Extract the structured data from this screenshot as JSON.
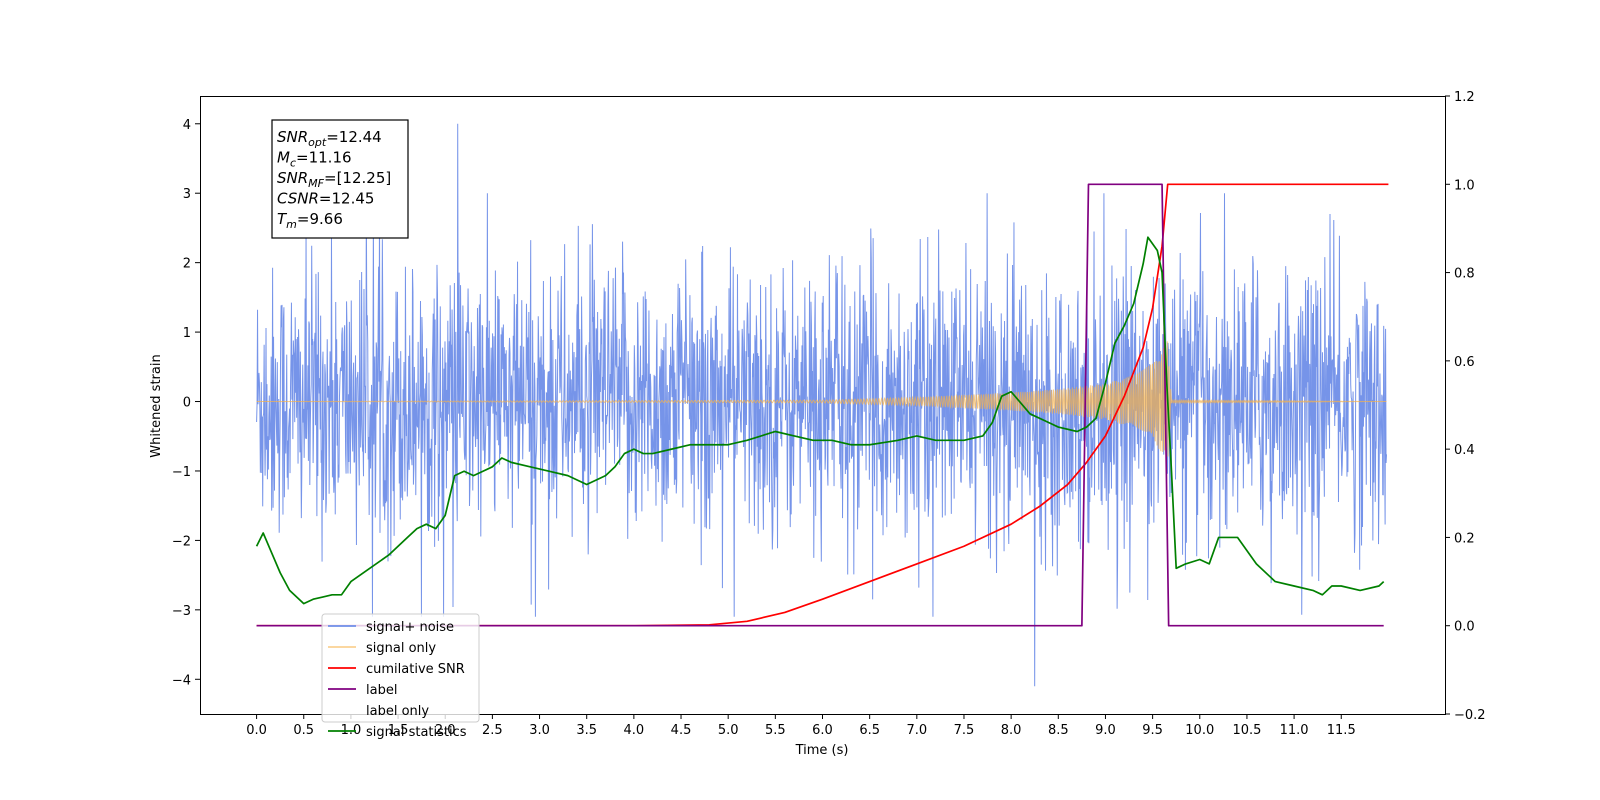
{
  "chart_data": {
    "type": "line",
    "title": "",
    "xlabel": "Time (s)",
    "ylabel": "Whitened strain",
    "xlim": [
      -0.6,
      12.6
    ],
    "ylim": [
      -4.5,
      4.4
    ],
    "y2lim": [
      -0.2,
      1.2
    ],
    "x_ticks": [
      "0.0",
      "0.5",
      "1.0",
      "1.5",
      "2.0",
      "2.5",
      "3.0",
      "3.5",
      "4.0",
      "4.5",
      "5.0",
      "5.5",
      "6.0",
      "6.5",
      "7.0",
      "7.5",
      "8.0",
      "8.5",
      "9.0",
      "9.5",
      "10.0",
      "10.5",
      "11.0",
      "11.5"
    ],
    "y_ticks": [
      "4",
      "3",
      "2",
      "1",
      "0",
      "−1",
      "−2",
      "−3",
      "−4"
    ],
    "y2_ticks": [
      "1.2",
      "1.0",
      "0.8",
      "0.6",
      "0.4",
      "0.2",
      "0.0",
      "−0.2"
    ],
    "grid": false,
    "legend_position": "lower-left",
    "info_box": [
      {
        "sym": "SNR",
        "sub": "opt",
        "value": "=12.44"
      },
      {
        "sym": "M",
        "sub": "c",
        "value": "=11.16"
      },
      {
        "sym": "SNR",
        "sub": "MF",
        "value": "=[12.25]"
      },
      {
        "sym": "CSNR",
        "sub": "",
        "value": "=12.45"
      },
      {
        "sym": "T",
        "sub": "m",
        "value": "=9.66"
      }
    ],
    "series": [
      {
        "name": "signal+ noise",
        "color": "#6f8ee8",
        "axis": "left",
        "description_values": {
          "mean": 0.0,
          "typical_envelope": [
            -2.2,
            2.7
          ],
          "max_spike": 4.0,
          "max_spike_x": 2.13,
          "min_spike": -4.1,
          "min_spike_x": 8.25
        }
      },
      {
        "name": "signal only",
        "color": "#f7b24a",
        "axis": "left",
        "envelope": {
          "x": [
            0.0,
            6.0,
            7.0,
            8.0,
            8.5,
            9.0,
            9.3,
            9.5,
            9.6,
            9.66,
            9.7,
            12.0
          ],
          "amp": [
            0.0,
            0.02,
            0.06,
            0.13,
            0.18,
            0.26,
            0.38,
            0.55,
            0.75,
            0.9,
            0.02,
            0.0
          ]
        }
      },
      {
        "name": "cumilative SNR",
        "color": "#ff0000",
        "axis": "right",
        "x": [
          0.0,
          4.0,
          4.8,
          5.2,
          5.6,
          6.0,
          6.5,
          7.0,
          7.5,
          8.0,
          8.3,
          8.6,
          8.8,
          9.0,
          9.2,
          9.4,
          9.5,
          9.6,
          9.66,
          12.0
        ],
        "y": [
          0.0,
          0.0,
          0.002,
          0.01,
          0.03,
          0.06,
          0.1,
          0.14,
          0.18,
          0.23,
          0.27,
          0.32,
          0.37,
          0.43,
          0.52,
          0.63,
          0.72,
          0.86,
          1.0,
          1.0
        ]
      },
      {
        "name": "label",
        "color": "#800080",
        "axis": "right",
        "x": [
          0.0,
          8.75,
          8.82,
          9.6,
          9.67,
          11.95
        ],
        "y": [
          0.0,
          0.0,
          1.0,
          1.0,
          0.0,
          0.0
        ]
      },
      {
        "name": "label only",
        "color": "#cc99cc",
        "axis": "right",
        "x": [],
        "y": []
      },
      {
        "name": "signal statistics",
        "color": "#008000",
        "axis": "right",
        "x": [
          0.0,
          0.07,
          0.15,
          0.25,
          0.35,
          0.5,
          0.6,
          0.7,
          0.8,
          0.9,
          1.0,
          1.2,
          1.4,
          1.6,
          1.7,
          1.8,
          1.9,
          2.0,
          2.1,
          2.2,
          2.3,
          2.4,
          2.5,
          2.6,
          2.7,
          2.9,
          3.1,
          3.3,
          3.5,
          3.7,
          3.8,
          3.9,
          4.0,
          4.1,
          4.2,
          4.4,
          4.6,
          4.8,
          5.0,
          5.2,
          5.5,
          5.7,
          5.9,
          6.1,
          6.3,
          6.5,
          6.8,
          7.0,
          7.2,
          7.5,
          7.7,
          7.8,
          7.9,
          8.0,
          8.2,
          8.4,
          8.5,
          8.7,
          8.8,
          8.9,
          9.0,
          9.1,
          9.2,
          9.3,
          9.4,
          9.45,
          9.55,
          9.6,
          9.65,
          9.7,
          9.75,
          9.85,
          10.0,
          10.1,
          10.2,
          10.3,
          10.4,
          10.5,
          10.6,
          10.8,
          11.0,
          11.2,
          11.3,
          11.4,
          11.5,
          11.7,
          11.9,
          11.95
        ],
        "y": [
          0.18,
          0.21,
          0.17,
          0.12,
          0.08,
          0.05,
          0.06,
          0.065,
          0.07,
          0.07,
          0.1,
          0.13,
          0.16,
          0.2,
          0.22,
          0.23,
          0.22,
          0.25,
          0.34,
          0.35,
          0.34,
          0.35,
          0.36,
          0.38,
          0.37,
          0.36,
          0.35,
          0.34,
          0.32,
          0.34,
          0.36,
          0.39,
          0.4,
          0.39,
          0.39,
          0.4,
          0.41,
          0.41,
          0.41,
          0.42,
          0.44,
          0.43,
          0.42,
          0.42,
          0.41,
          0.41,
          0.42,
          0.43,
          0.42,
          0.42,
          0.43,
          0.46,
          0.52,
          0.53,
          0.48,
          0.46,
          0.45,
          0.44,
          0.45,
          0.47,
          0.55,
          0.64,
          0.68,
          0.73,
          0.82,
          0.88,
          0.85,
          0.8,
          0.55,
          0.35,
          0.13,
          0.14,
          0.15,
          0.14,
          0.2,
          0.2,
          0.2,
          0.17,
          0.14,
          0.1,
          0.09,
          0.08,
          0.07,
          0.09,
          0.09,
          0.08,
          0.09,
          0.1
        ]
      }
    ]
  }
}
